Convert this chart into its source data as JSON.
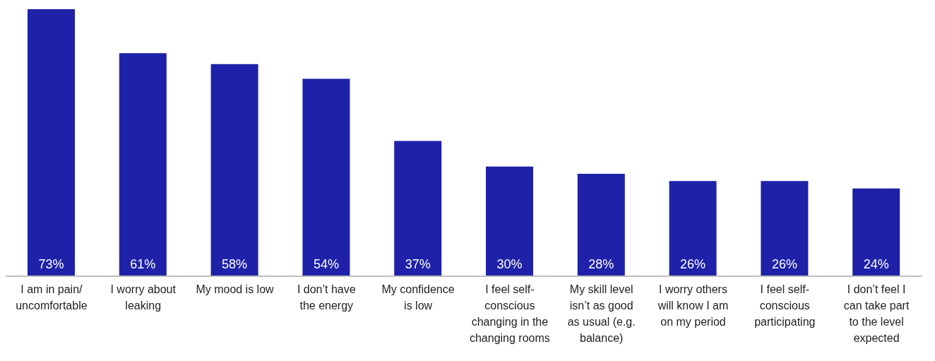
{
  "chart_data": {
    "type": "bar",
    "categories": [
      "I am in pain/ uncomfortable",
      "I worry about leaking",
      "My mood is low",
      "I don’t have the energy",
      "My confidence is low",
      "I feel self-conscious changing in the changing rooms",
      "My skill level isn’t as good as usual (e.g. balance)",
      "I worry others will know I am on my period",
      "I feel self-conscious participating",
      "I don’t feel I can take part to the level expected"
    ],
    "values": [
      73,
      61,
      58,
      54,
      37,
      30,
      28,
      26,
      26,
      24
    ],
    "value_labels": [
      "73%",
      "61%",
      "58%",
      "54%",
      "37%",
      "30%",
      "28%",
      "26%",
      "26%",
      "24%"
    ],
    "color": "#1f22a8"
  }
}
